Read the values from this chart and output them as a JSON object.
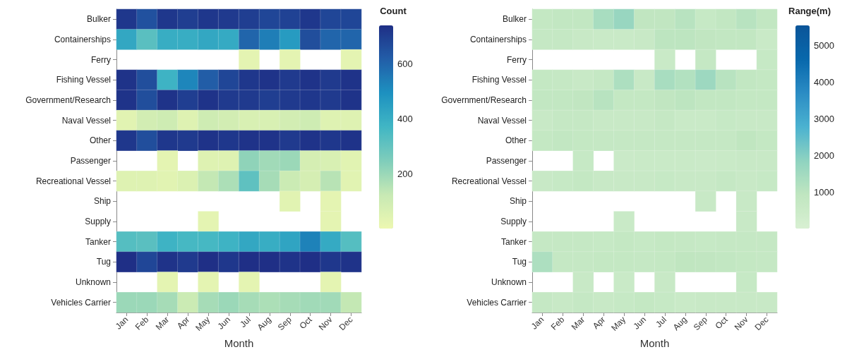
{
  "chart_data": [
    {
      "type": "heatmap",
      "xlabel": "Month",
      "clabel": "Count",
      "clim": [
        1,
        740
      ],
      "cticks": [
        200,
        400,
        600
      ],
      "categories": [
        "Jan",
        "Feb",
        "Mar",
        "Apr",
        "May",
        "Jun",
        "Jul",
        "Aug",
        "Sep",
        "Oct",
        "Nov",
        "Dec"
      ],
      "y_categories": [
        "Bulker",
        "Containerships",
        "Ferry",
        "Fishing Vessel",
        "Government/Research",
        "Naval Vessel",
        "Other",
        "Passenger",
        "Recreational Vessel",
        "Ship",
        "Supply",
        "Tanker",
        "Tug",
        "Unknown",
        "Vehicles Carrier"
      ],
      "cells": [
        [
          720,
          650,
          720,
          700,
          720,
          710,
          700,
          680,
          690,
          720,
          680,
          680
        ],
        [
          420,
          320,
          400,
          400,
          420,
          410,
          600,
          540,
          460,
          660,
          600,
          600
        ],
        [
          null,
          null,
          null,
          null,
          null,
          null,
          30,
          null,
          30,
          null,
          null,
          30
        ],
        [
          730,
          660,
          380,
          520,
          620,
          680,
          720,
          730,
          710,
          730,
          710,
          730
        ],
        [
          730,
          660,
          730,
          700,
          730,
          710,
          710,
          700,
          710,
          720,
          710,
          730
        ],
        [
          40,
          90,
          100,
          50,
          100,
          90,
          70,
          70,
          90,
          100,
          50,
          50
        ],
        [
          720,
          660,
          720,
          710,
          730,
          720,
          730,
          730,
          710,
          730,
          720,
          730
        ],
        [
          null,
          null,
          30,
          null,
          50,
          50,
          220,
          190,
          200,
          80,
          70,
          40
        ],
        [
          50,
          50,
          40,
          60,
          130,
          170,
          310,
          180,
          110,
          80,
          150,
          40
        ],
        [
          null,
          null,
          null,
          null,
          null,
          null,
          null,
          null,
          40,
          null,
          30,
          null
        ],
        [
          null,
          null,
          null,
          null,
          30,
          null,
          null,
          null,
          null,
          null,
          30,
          null
        ],
        [
          330,
          320,
          380,
          360,
          360,
          380,
          420,
          400,
          430,
          530,
          410,
          330
        ],
        [
          740,
          680,
          730,
          710,
          740,
          720,
          740,
          740,
          730,
          740,
          720,
          730
        ],
        [
          null,
          null,
          30,
          null,
          30,
          null,
          30,
          null,
          null,
          null,
          30,
          null
        ],
        [
          200,
          200,
          180,
          110,
          180,
          200,
          180,
          170,
          180,
          190,
          190,
          130
        ]
      ]
    },
    {
      "type": "heatmap",
      "xlabel": "Month",
      "clabel": "Range(m)",
      "clim": [
        20,
        5550
      ],
      "cticks": [
        1000,
        2000,
        3000,
        4000,
        5000
      ],
      "categories": [
        "Jan",
        "Feb",
        "Mar",
        "Apr",
        "May",
        "Jun",
        "Jul",
        "Aug",
        "Sep",
        "Oct",
        "Nov",
        "Dec"
      ],
      "y_categories": [
        "Bulker",
        "Containerships",
        "Ferry",
        "Fishing Vessel",
        "Government/Research",
        "Naval Vessel",
        "Other",
        "Passenger",
        "Recreational Vessel",
        "Ship",
        "Supply",
        "Tanker",
        "Tug",
        "Unknown",
        "Vehicles Carrier"
      ],
      "cells": [
        [
          800,
          850,
          850,
          1400,
          1700,
          900,
          900,
          1100,
          700,
          850,
          1100,
          850
        ],
        [
          750,
          750,
          650,
          600,
          600,
          650,
          1000,
          1000,
          900,
          850,
          850,
          600
        ],
        [
          null,
          null,
          null,
          null,
          null,
          null,
          600,
          null,
          750,
          null,
          null,
          700
        ],
        [
          800,
          750,
          650,
          750,
          1300,
          650,
          1400,
          1200,
          1600,
          1100,
          850,
          800
        ],
        [
          850,
          850,
          900,
          1100,
          800,
          800,
          900,
          1000,
          850,
          850,
          800,
          800
        ],
        [
          650,
          750,
          750,
          650,
          650,
          650,
          750,
          600,
          600,
          700,
          650,
          650
        ],
        [
          800,
          850,
          800,
          750,
          750,
          750,
          750,
          750,
          750,
          750,
          950,
          800
        ],
        [
          null,
          null,
          700,
          null,
          550,
          600,
          600,
          600,
          550,
          600,
          650,
          650
        ],
        [
          650,
          700,
          800,
          650,
          650,
          650,
          700,
          650,
          650,
          750,
          650,
          700
        ],
        [
          null,
          null,
          null,
          null,
          null,
          null,
          null,
          null,
          650,
          null,
          650,
          null
        ],
        [
          null,
          null,
          null,
          null,
          600,
          null,
          null,
          null,
          null,
          null,
          650,
          null
        ],
        [
          750,
          750,
          750,
          700,
          800,
          700,
          800,
          750,
          700,
          750,
          750,
          750
        ],
        [
          1300,
          750,
          750,
          800,
          800,
          750,
          800,
          950,
          900,
          850,
          800,
          750
        ],
        [
          null,
          null,
          650,
          null,
          600,
          null,
          650,
          null,
          null,
          null,
          700,
          null
        ],
        [
          750,
          650,
          750,
          650,
          700,
          800,
          700,
          600,
          650,
          650,
          650,
          650
        ]
      ]
    }
  ]
}
